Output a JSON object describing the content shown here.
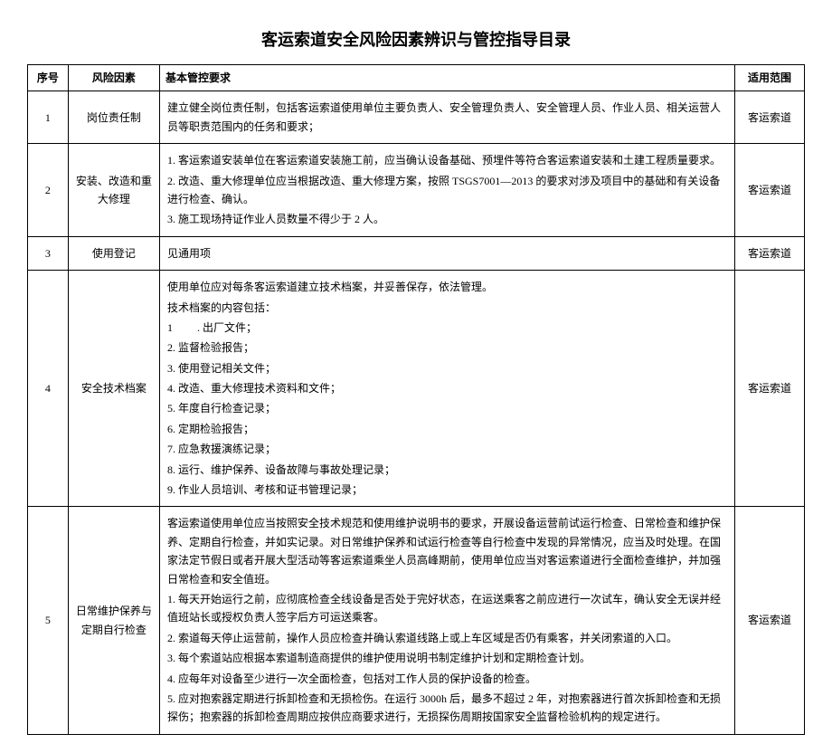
{
  "title": "客运索道安全风险因素辨识与管控指导目录",
  "headers": {
    "seq": "序号",
    "risk": "风险因素",
    "req": "基本管控要求",
    "scope": "适用范围"
  },
  "rows": [
    {
      "seq": "1",
      "risk": "岗位责任制",
      "req_lines": [
        "建立健全岗位责任制，包括客运索道使用单位主要负责人、安全管理负责人、安全管理人员、作业人员、相关运营人员等职责范围内的任务和要求；"
      ],
      "scope": "客运索道"
    },
    {
      "seq": "2",
      "risk": "安装、改造和重大修理",
      "req_lines": [
        "1. 客运索道安装单位在客运索道安装施工前，应当确认设备基础、预埋件等符合客运索道安装和土建工程质量要求。",
        "2. 改造、重大修理单位应当根据改造、重大修理方案，按照 TSGS7001—2013 的要求对涉及项目中的基础和有关设备进行检查、确认。",
        "3. 施工现场持证作业人员数量不得少于 2 人。"
      ],
      "scope": "客运索道"
    },
    {
      "seq": "3",
      "risk": "使用登记",
      "req_lines": [
        "见通用项"
      ],
      "scope": "客运索道"
    },
    {
      "seq": "4",
      "risk": "安全技术档案",
      "req_lines": [
        "使用单位应对每条客运索道建立技术档案，并妥善保存，依法管理。",
        "技术档案的内容包括：",
        "1         . 出厂文件；",
        "2. 监督检验报告；",
        "3. 使用登记相关文件；",
        "4. 改造、重大修理技术资料和文件；",
        "5. 年度自行检查记录；",
        "6. 定期检验报告；",
        "7. 应急救援演练记录；",
        "8. 运行、维护保养、设备故障与事故处理记录；",
        "9. 作业人员培训、考核和证书管理记录；"
      ],
      "scope": "客运索道"
    },
    {
      "seq": "5",
      "risk": "日常维护保养与定期自行检查",
      "req_lines": [
        "客运索道使用单位应当按照安全技术规范和使用维护说明书的要求，开展设备运营前试运行检查、日常检查和维护保养、定期自行检查，并如实记录。对日常维护保养和试运行检查等自行检查中发现的异常情况，应当及时处理。在国家法定节假日或者开展大型活动等客运索道乘坐人员高峰期前，使用单位应当对客运索道进行全面检查维护，并加强日常检查和安全值班。",
        "1. 每天开始运行之前，应彻底检查全线设备是否处于完好状态，在运送乘客之前应进行一次试车，确认安全无误并经值班站长或授权负责人签字后方可运送乘客。",
        "2. 索道每天停止运营前，操作人员应检查并确认索道线路上或上车区域是否仍有乘客，并关闭索道的入口。",
        "3. 每个索道站应根据本索道制造商提供的维护使用说明书制定维护计划和定期检查计划。",
        "4. 应每年对设备至少进行一次全面检查，包括对工作人员的保护设备的检查。",
        "5. 应对抱索器定期进行拆卸检查和无损检伤。在运行 3000h 后，最多不超过 2 年，对抱索器进行首次拆卸检查和无损探伤；抱索器的拆卸检查周期应按供应商要求进行，无损探伤周期按国家安全监督检验机构的规定进行。"
      ],
      "scope": "客运索道"
    }
  ]
}
